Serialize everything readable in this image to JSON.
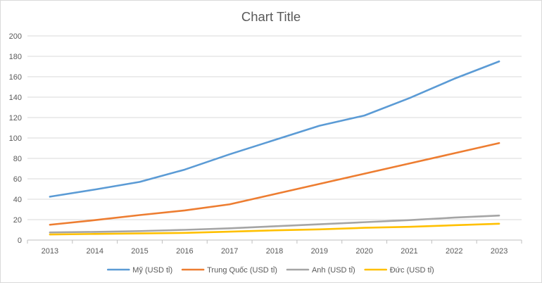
{
  "chart_data": {
    "type": "line",
    "title": "Chart Title",
    "xlabel": "",
    "ylabel": "",
    "categories": [
      "2013",
      "2014",
      "2015",
      "2016",
      "2017",
      "2018",
      "2019",
      "2020",
      "2021",
      "2022",
      "2023"
    ],
    "ylim": [
      0,
      200
    ],
    "yticks": [
      0,
      20,
      40,
      60,
      80,
      100,
      120,
      140,
      160,
      180,
      200
    ],
    "grid": true,
    "legend_position": "bottom",
    "series": [
      {
        "name": "Mỹ (USD tỉ)",
        "color": "#5b9bd5",
        "values": [
          42.5,
          49.5,
          57,
          69,
          84,
          98,
          112,
          122,
          139,
          158,
          175
        ]
      },
      {
        "name": "Trung Quốc (USD tỉ)",
        "color": "#ed7d31",
        "values": [
          15,
          19.5,
          24.5,
          29,
          35,
          45,
          55,
          65,
          75,
          85,
          95
        ]
      },
      {
        "name": "Anh (USD tỉ)",
        "color": "#a5a5a5",
        "values": [
          7.5,
          8,
          8.8,
          10,
          11.5,
          13.5,
          15.5,
          17.5,
          19.5,
          22,
          24
        ]
      },
      {
        "name": "Đức (USD tỉ)",
        "color": "#ffc000",
        "values": [
          5.5,
          6,
          6.5,
          7,
          8.2,
          9.5,
          10.5,
          12,
          13,
          14.5,
          16
        ]
      }
    ]
  }
}
